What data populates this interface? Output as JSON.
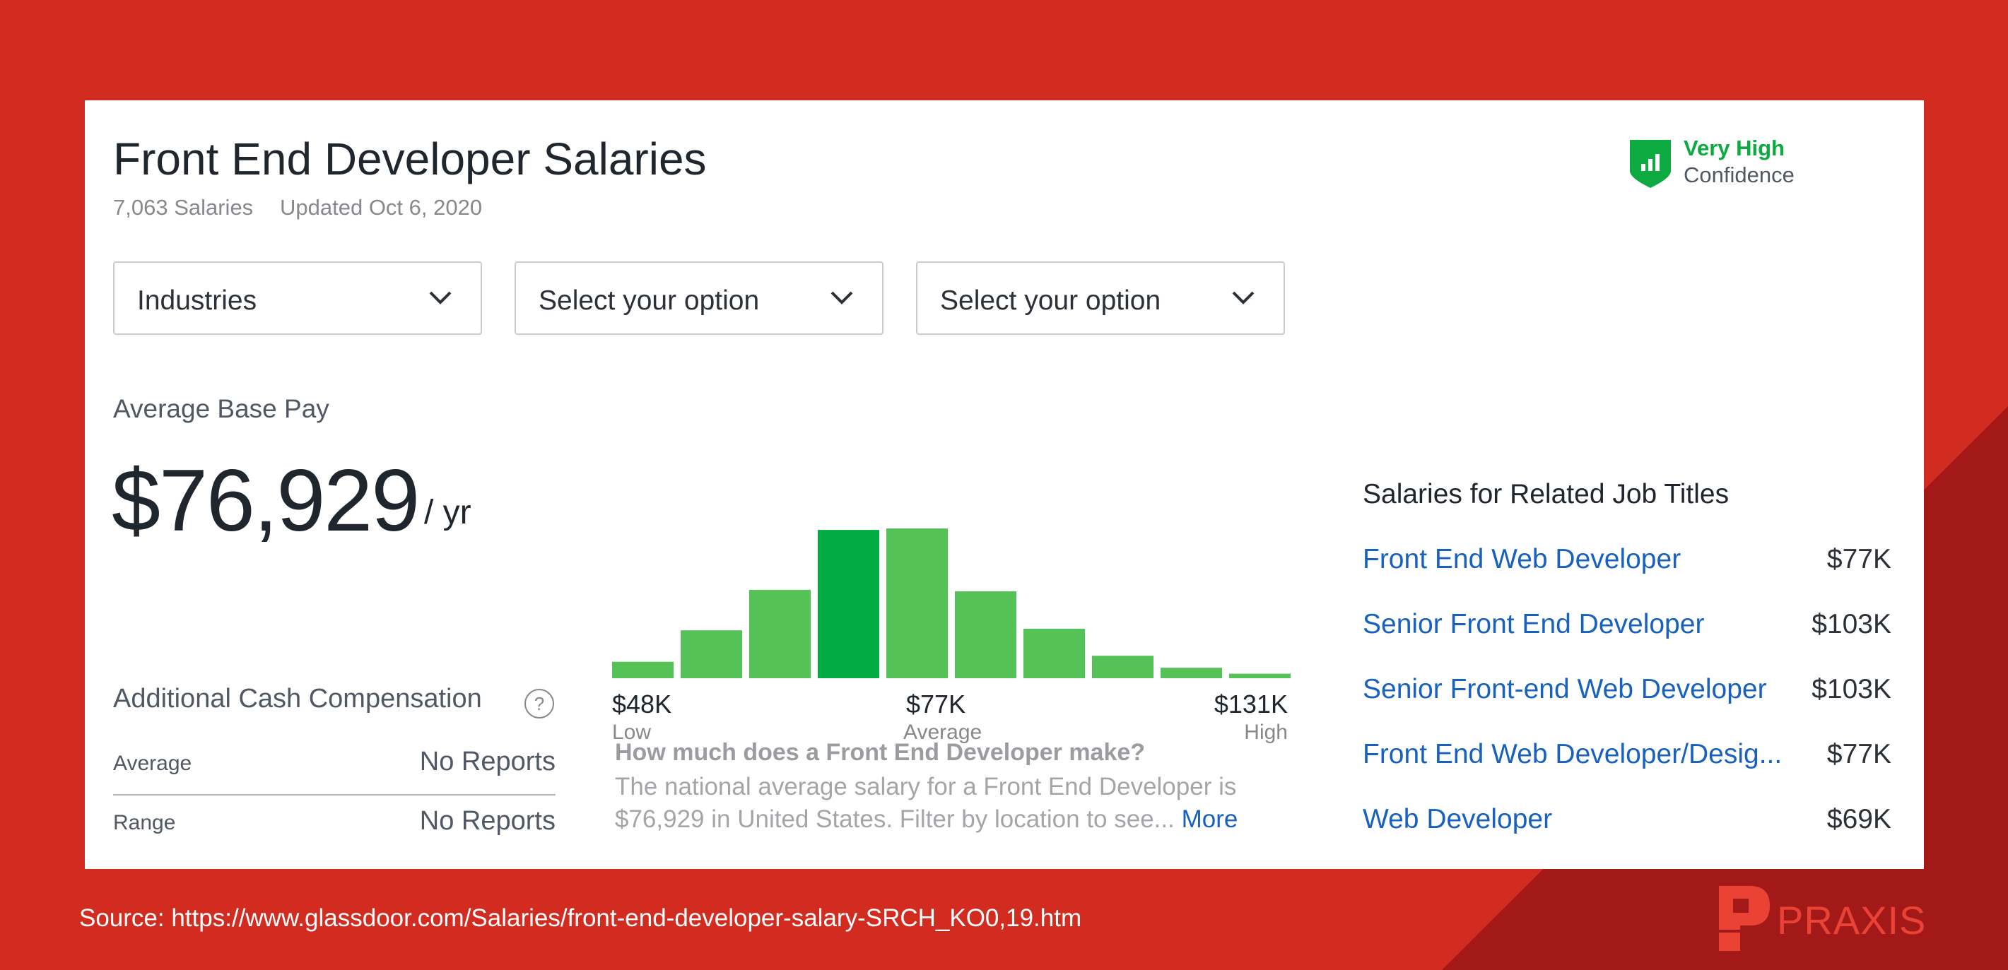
{
  "header": {
    "title": "Front End Developer Salaries",
    "salaries_count": "7,063 Salaries",
    "updated": "Updated Oct 6, 2020"
  },
  "confidence": {
    "level": "Very High",
    "label": "Confidence",
    "icon": "bar-chart-shield-icon",
    "color": "#0caa41"
  },
  "filters": [
    {
      "label": "Industries"
    },
    {
      "label": "Select your option"
    },
    {
      "label": "Select your option"
    }
  ],
  "base_pay": {
    "label": "Average Base Pay",
    "value": "$76,929",
    "unit": "/ yr"
  },
  "histogram": {
    "low_value": "$48K",
    "low_label": "Low",
    "avg_value": "$77K",
    "avg_label": "Average",
    "high_value": "$131K",
    "high_label": "High",
    "relative_frequencies": [
      0.11,
      0.32,
      0.59,
      0.99,
      1.0,
      0.58,
      0.33,
      0.15,
      0.07,
      0.03
    ],
    "highlighted_index": 3,
    "bar_color": "#55c257",
    "highlight_color": "#00ab44"
  },
  "additional_comp": {
    "label": "Additional Cash Compensation",
    "help_icon": "?",
    "rows": [
      {
        "label": "Average",
        "value": "No Reports"
      },
      {
        "label": "Range",
        "value": "No Reports"
      }
    ]
  },
  "description": {
    "heading": "How much does a Front End Developer make?",
    "line1": "The national average salary for a Front End Developer is",
    "line2": "$76,929 in United States. Filter by location to see...",
    "more": "More"
  },
  "related": {
    "heading": "Salaries for Related Job Titles",
    "items": [
      {
        "title": "Front End Web Developer",
        "pay": "$77K"
      },
      {
        "title": "Senior Front End Developer",
        "pay": "$103K"
      },
      {
        "title": "Senior Front-end Web Developer",
        "pay": "$103K"
      },
      {
        "title": "Front End Web Developer/Desig...",
        "pay": "$77K"
      },
      {
        "title": "Web Developer",
        "pay": "$69K"
      }
    ]
  },
  "footer": {
    "source": "Source: https://www.glassdoor.com/Salaries/front-end-developer-salary-SRCH_KO0,19.htm",
    "brand": "PRAXIS"
  },
  "colors": {
    "background": "#d22b20",
    "background_dark": "#a21918",
    "link": "#1861bf"
  }
}
